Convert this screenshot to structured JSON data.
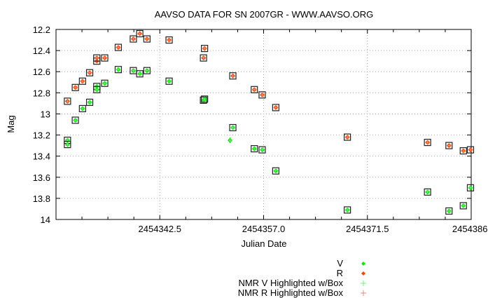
{
  "chart_data": {
    "type": "scatter",
    "title": "AAVSO DATA FOR SN 2007GR - WWW.AAVSO.ORG",
    "xlabel": "Julian Date",
    "ylabel": "Mag",
    "xlim": [
      2454328.0,
      2454386.0
    ],
    "ylim": [
      14.0,
      12.2
    ],
    "y_inverted": true,
    "grid": true,
    "xticks": [
      2454342.5,
      2454357.0,
      2454371.5,
      2454386.0
    ],
    "xtick_labels": [
      "2454342.5",
      "2454357.0",
      "2454371.5",
      "2454386."
    ],
    "yticks": [
      12.2,
      12.4,
      12.6,
      12.8,
      13.0,
      13.2,
      13.4,
      13.6,
      13.8,
      14.0
    ],
    "ytick_labels": [
      "12.2",
      "12.4",
      "12.6",
      "12.8",
      "13",
      "13.2",
      "13.4",
      "13.6",
      "13.8",
      "14"
    ],
    "legend_position": "bottom",
    "legend": [
      {
        "label": "V",
        "color": "#00ee00",
        "marker": "diamond"
      },
      {
        "label": "R",
        "color": "#ff4500",
        "marker": "diamond"
      },
      {
        "label": "NMR V Highlighted w/Box",
        "color": "#66ff66",
        "marker": "plus"
      },
      {
        "label": "NMR R Highlighted w/Box",
        "color": "#ff7f7f",
        "marker": "plus"
      }
    ],
    "series": [
      {
        "name": "V",
        "color": "#00ee00",
        "boxed": false,
        "x": [
          2454352.3
        ],
        "y": [
          13.25
        ],
        "err": [
          0.02
        ]
      },
      {
        "name": "NMR V Highlighted w/Box",
        "color": "#00ee00",
        "boxed": true,
        "x": [
          2454329.6,
          2454329.6,
          2454330.7,
          2454331.7,
          2454332.7,
          2454333.7,
          2454333.7,
          2454334.8,
          2454336.7,
          2454338.8,
          2454339.7,
          2454340.7,
          2454343.8,
          2454348.6,
          2454348.75,
          2454352.7,
          2454355.7,
          2454356.8,
          2454358.7,
          2454368.7,
          2454379.9,
          2454382.9,
          2454384.9,
          2454385.9
        ],
        "y": [
          13.25,
          13.29,
          13.06,
          12.95,
          12.89,
          12.74,
          12.77,
          12.71,
          12.58,
          12.59,
          12.62,
          12.59,
          12.69,
          12.87,
          12.86,
          13.13,
          13.33,
          13.34,
          13.54,
          13.91,
          13.74,
          13.92,
          13.87,
          13.7
        ]
      },
      {
        "name": "NMR R Highlighted w/Box",
        "color": "#ff4500",
        "boxed": true,
        "x": [
          2454329.6,
          2454330.7,
          2454331.7,
          2454332.7,
          2454333.7,
          2454333.7,
          2454334.8,
          2454336.7,
          2454338.8,
          2454339.7,
          2454340.7,
          2454343.8,
          2454348.6,
          2454348.75,
          2454352.7,
          2454355.7,
          2454356.8,
          2454358.7,
          2454368.7,
          2454379.9,
          2454382.9,
          2454384.9,
          2454385.9
        ],
        "y": [
          12.88,
          12.75,
          12.69,
          12.61,
          12.5,
          12.47,
          12.47,
          12.37,
          12.29,
          12.24,
          12.29,
          12.3,
          12.47,
          12.38,
          12.64,
          12.77,
          12.82,
          12.94,
          13.22,
          13.27,
          13.3,
          13.35,
          13.34
        ]
      }
    ]
  }
}
